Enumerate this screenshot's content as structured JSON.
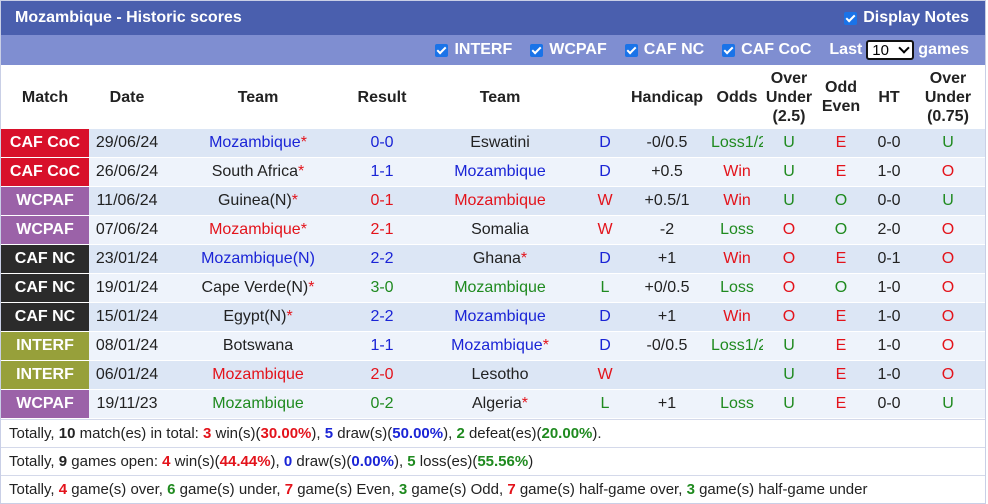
{
  "header": {
    "title": "Mozambique - Historic scores",
    "display_notes_label": "Display Notes"
  },
  "filters": {
    "items": [
      "INTERF",
      "WCPAF",
      "CAF NC",
      "CAF CoC"
    ],
    "last_label": "Last",
    "last_value": "10",
    "games_label": "games"
  },
  "columns": [
    "Match",
    "Date",
    "Team",
    "Result",
    "Team",
    "",
    "Handicap",
    "Odds",
    "Over Under (2.5)",
    "Odd Even",
    "HT",
    "Over Under (0.75)"
  ],
  "colors": {
    "CAF CoC": "#d8102a",
    "WCPAF": "#9b62a8",
    "CAF NC": "#2b2b2b",
    "INTERF": "#97a03a"
  },
  "rows": [
    {
      "match": "CAF CoC",
      "date": "29/06/24",
      "home": "Mozambique",
      "home_star": "*",
      "home_color": "blue",
      "result": "0-0",
      "away": "Eswatini",
      "away_star": "",
      "away_color": "dark",
      "wdl": "D",
      "handicap": "-0/0.5",
      "odds": "Loss1/2",
      "odds_color": "green",
      "ou": "U",
      "oe": "E",
      "ht": "0-0",
      "ou2": "U"
    },
    {
      "match": "CAF CoC",
      "date": "26/06/24",
      "home": "South Africa",
      "home_star": "*",
      "home_color": "dark",
      "result": "1-1",
      "away": "Mozambique",
      "away_star": "",
      "away_color": "blue",
      "wdl": "D",
      "handicap": "+0.5",
      "odds": "Win",
      "odds_color": "red",
      "ou": "U",
      "oe": "E",
      "ht": "1-0",
      "ou2": "O"
    },
    {
      "match": "WCPAF",
      "date": "11/06/24",
      "home": "Guinea(N)",
      "home_star": "*",
      "home_color": "dark",
      "result": "0-1",
      "away": "Mozambique",
      "away_star": "",
      "away_color": "red",
      "wdl": "W",
      "handicap": "+0.5/1",
      "odds": "Win",
      "odds_color": "red",
      "ou": "U",
      "oe": "O",
      "ht": "0-0",
      "ou2": "U"
    },
    {
      "match": "WCPAF",
      "date": "07/06/24",
      "home": "Mozambique",
      "home_star": "*",
      "home_color": "red",
      "result": "2-1",
      "away": "Somalia",
      "away_star": "",
      "away_color": "dark",
      "wdl": "W",
      "handicap": "-2",
      "odds": "Loss",
      "odds_color": "green",
      "ou": "O",
      "oe": "O",
      "ht": "2-0",
      "ou2": "O"
    },
    {
      "match": "CAF NC",
      "date": "23/01/24",
      "home": "Mozambique(N)",
      "home_star": "",
      "home_color": "blue",
      "result": "2-2",
      "away": "Ghana",
      "away_star": "*",
      "away_color": "dark",
      "wdl": "D",
      "handicap": "+1",
      "odds": "Win",
      "odds_color": "red",
      "ou": "O",
      "oe": "E",
      "ht": "0-1",
      "ou2": "O"
    },
    {
      "match": "CAF NC",
      "date": "19/01/24",
      "home": "Cape Verde(N)",
      "home_star": "*",
      "home_color": "dark",
      "result": "3-0",
      "away": "Mozambique",
      "away_star": "",
      "away_color": "green",
      "wdl": "L",
      "handicap": "+0/0.5",
      "odds": "Loss",
      "odds_color": "green",
      "ou": "O",
      "oe": "O",
      "ht": "1-0",
      "ou2": "O"
    },
    {
      "match": "CAF NC",
      "date": "15/01/24",
      "home": "Egypt(N)",
      "home_star": "*",
      "home_color": "dark",
      "result": "2-2",
      "away": "Mozambique",
      "away_star": "",
      "away_color": "blue",
      "wdl": "D",
      "handicap": "+1",
      "odds": "Win",
      "odds_color": "red",
      "ou": "O",
      "oe": "E",
      "ht": "1-0",
      "ou2": "O"
    },
    {
      "match": "INTERF",
      "date": "08/01/24",
      "home": "Botswana",
      "home_star": "",
      "home_color": "dark",
      "result": "1-1",
      "away": "Mozambique",
      "away_star": "*",
      "away_color": "blue",
      "wdl": "D",
      "handicap": "-0/0.5",
      "odds": "Loss1/2",
      "odds_color": "green",
      "ou": "U",
      "oe": "E",
      "ht": "1-0",
      "ou2": "O"
    },
    {
      "match": "INTERF",
      "date": "06/01/24",
      "home": "Mozambique",
      "home_star": "",
      "home_color": "red",
      "result": "2-0",
      "away": "Lesotho",
      "away_star": "",
      "away_color": "dark",
      "wdl": "W",
      "handicap": "",
      "odds": "",
      "odds_color": "green",
      "ou": "U",
      "oe": "E",
      "ht": "1-0",
      "ou2": "O"
    },
    {
      "match": "WCPAF",
      "date": "19/11/23",
      "home": "Mozambique",
      "home_star": "",
      "home_color": "green",
      "result": "0-2",
      "away": "Algeria",
      "away_star": "*",
      "away_color": "dark",
      "wdl": "L",
      "handicap": "+1",
      "odds": "Loss",
      "odds_color": "green",
      "ou": "U",
      "oe": "E",
      "ht": "0-0",
      "ou2": "U"
    }
  ],
  "summary": {
    "line1": [
      {
        "t": "Totally, ",
        "s": ""
      },
      {
        "t": "10",
        "s": "b"
      },
      {
        "t": " match(es) in total: ",
        "s": ""
      },
      {
        "t": "3",
        "s": "b-red"
      },
      {
        "t": " win(s)(",
        "s": ""
      },
      {
        "t": "30.00%",
        "s": "b-red"
      },
      {
        "t": "), ",
        "s": ""
      },
      {
        "t": "5",
        "s": "b-blue"
      },
      {
        "t": " draw(s)(",
        "s": ""
      },
      {
        "t": "50.00%",
        "s": "b-blue"
      },
      {
        "t": "), ",
        "s": ""
      },
      {
        "t": "2",
        "s": "b-green"
      },
      {
        "t": " defeat(es)(",
        "s": ""
      },
      {
        "t": "20.00%",
        "s": "b-green"
      },
      {
        "t": ").",
        "s": ""
      }
    ],
    "line2": [
      {
        "t": "Totally, ",
        "s": ""
      },
      {
        "t": "9",
        "s": "b"
      },
      {
        "t": " games open: ",
        "s": ""
      },
      {
        "t": "4",
        "s": "b-red"
      },
      {
        "t": " win(s)(",
        "s": ""
      },
      {
        "t": "44.44%",
        "s": "b-red"
      },
      {
        "t": "), ",
        "s": ""
      },
      {
        "t": "0",
        "s": "b-blue"
      },
      {
        "t": " draw(s)(",
        "s": ""
      },
      {
        "t": "0.00%",
        "s": "b-blue"
      },
      {
        "t": "), ",
        "s": ""
      },
      {
        "t": "5",
        "s": "b-green"
      },
      {
        "t": " loss(es)(",
        "s": ""
      },
      {
        "t": "55.56%",
        "s": "b-green"
      },
      {
        "t": ")",
        "s": ""
      }
    ],
    "line3": [
      {
        "t": "Totally, ",
        "s": ""
      },
      {
        "t": "4",
        "s": "b-red"
      },
      {
        "t": " game(s) over, ",
        "s": ""
      },
      {
        "t": "6",
        "s": "b-green"
      },
      {
        "t": " game(s) under, ",
        "s": ""
      },
      {
        "t": "7",
        "s": "b-red"
      },
      {
        "t": " game(s) Even, ",
        "s": ""
      },
      {
        "t": "3",
        "s": "b-green"
      },
      {
        "t": " game(s) Odd, ",
        "s": ""
      },
      {
        "t": "7",
        "s": "b-red"
      },
      {
        "t": " game(s) half-game over, ",
        "s": ""
      },
      {
        "t": "3",
        "s": "b-green"
      },
      {
        "t": " game(s) half-game under",
        "s": ""
      }
    ]
  }
}
